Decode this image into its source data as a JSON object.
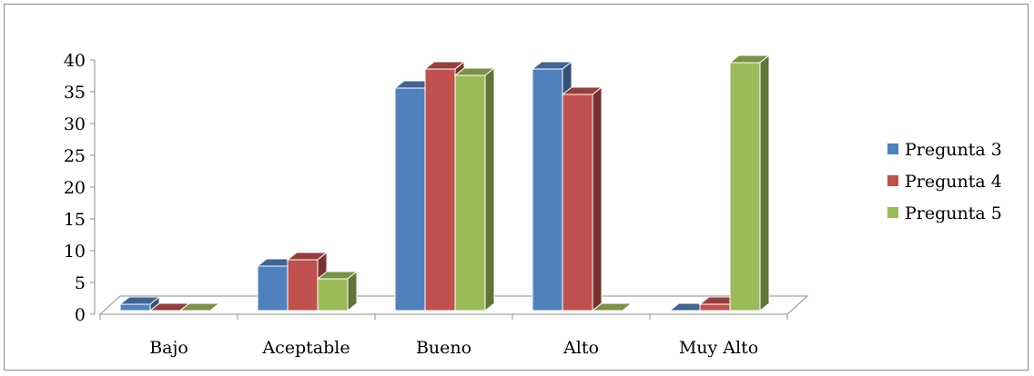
{
  "chart_data": {
    "type": "bar",
    "title": "",
    "xlabel": "",
    "ylabel": "",
    "categories": [
      "Bajo",
      "Aceptable",
      "Bueno",
      "Alto",
      "Muy Alto"
    ],
    "series": [
      {
        "name": "Pregunta 3",
        "values": [
          1,
          7,
          35,
          38,
          0
        ],
        "color": "#4f81bd"
      },
      {
        "name": "Pregunta 4",
        "values": [
          0,
          8,
          38,
          34,
          1
        ],
        "color": "#c0504d"
      },
      {
        "name": "Pregunta 5",
        "values": [
          0,
          5,
          37,
          0,
          39
        ],
        "color": "#9bbb59"
      }
    ],
    "ylim": [
      0,
      40
    ],
    "yticks": [
      0,
      5,
      10,
      15,
      20,
      25,
      30,
      35,
      40
    ],
    "style": "3d-clustered-column",
    "grid": false,
    "legend": "right"
  }
}
